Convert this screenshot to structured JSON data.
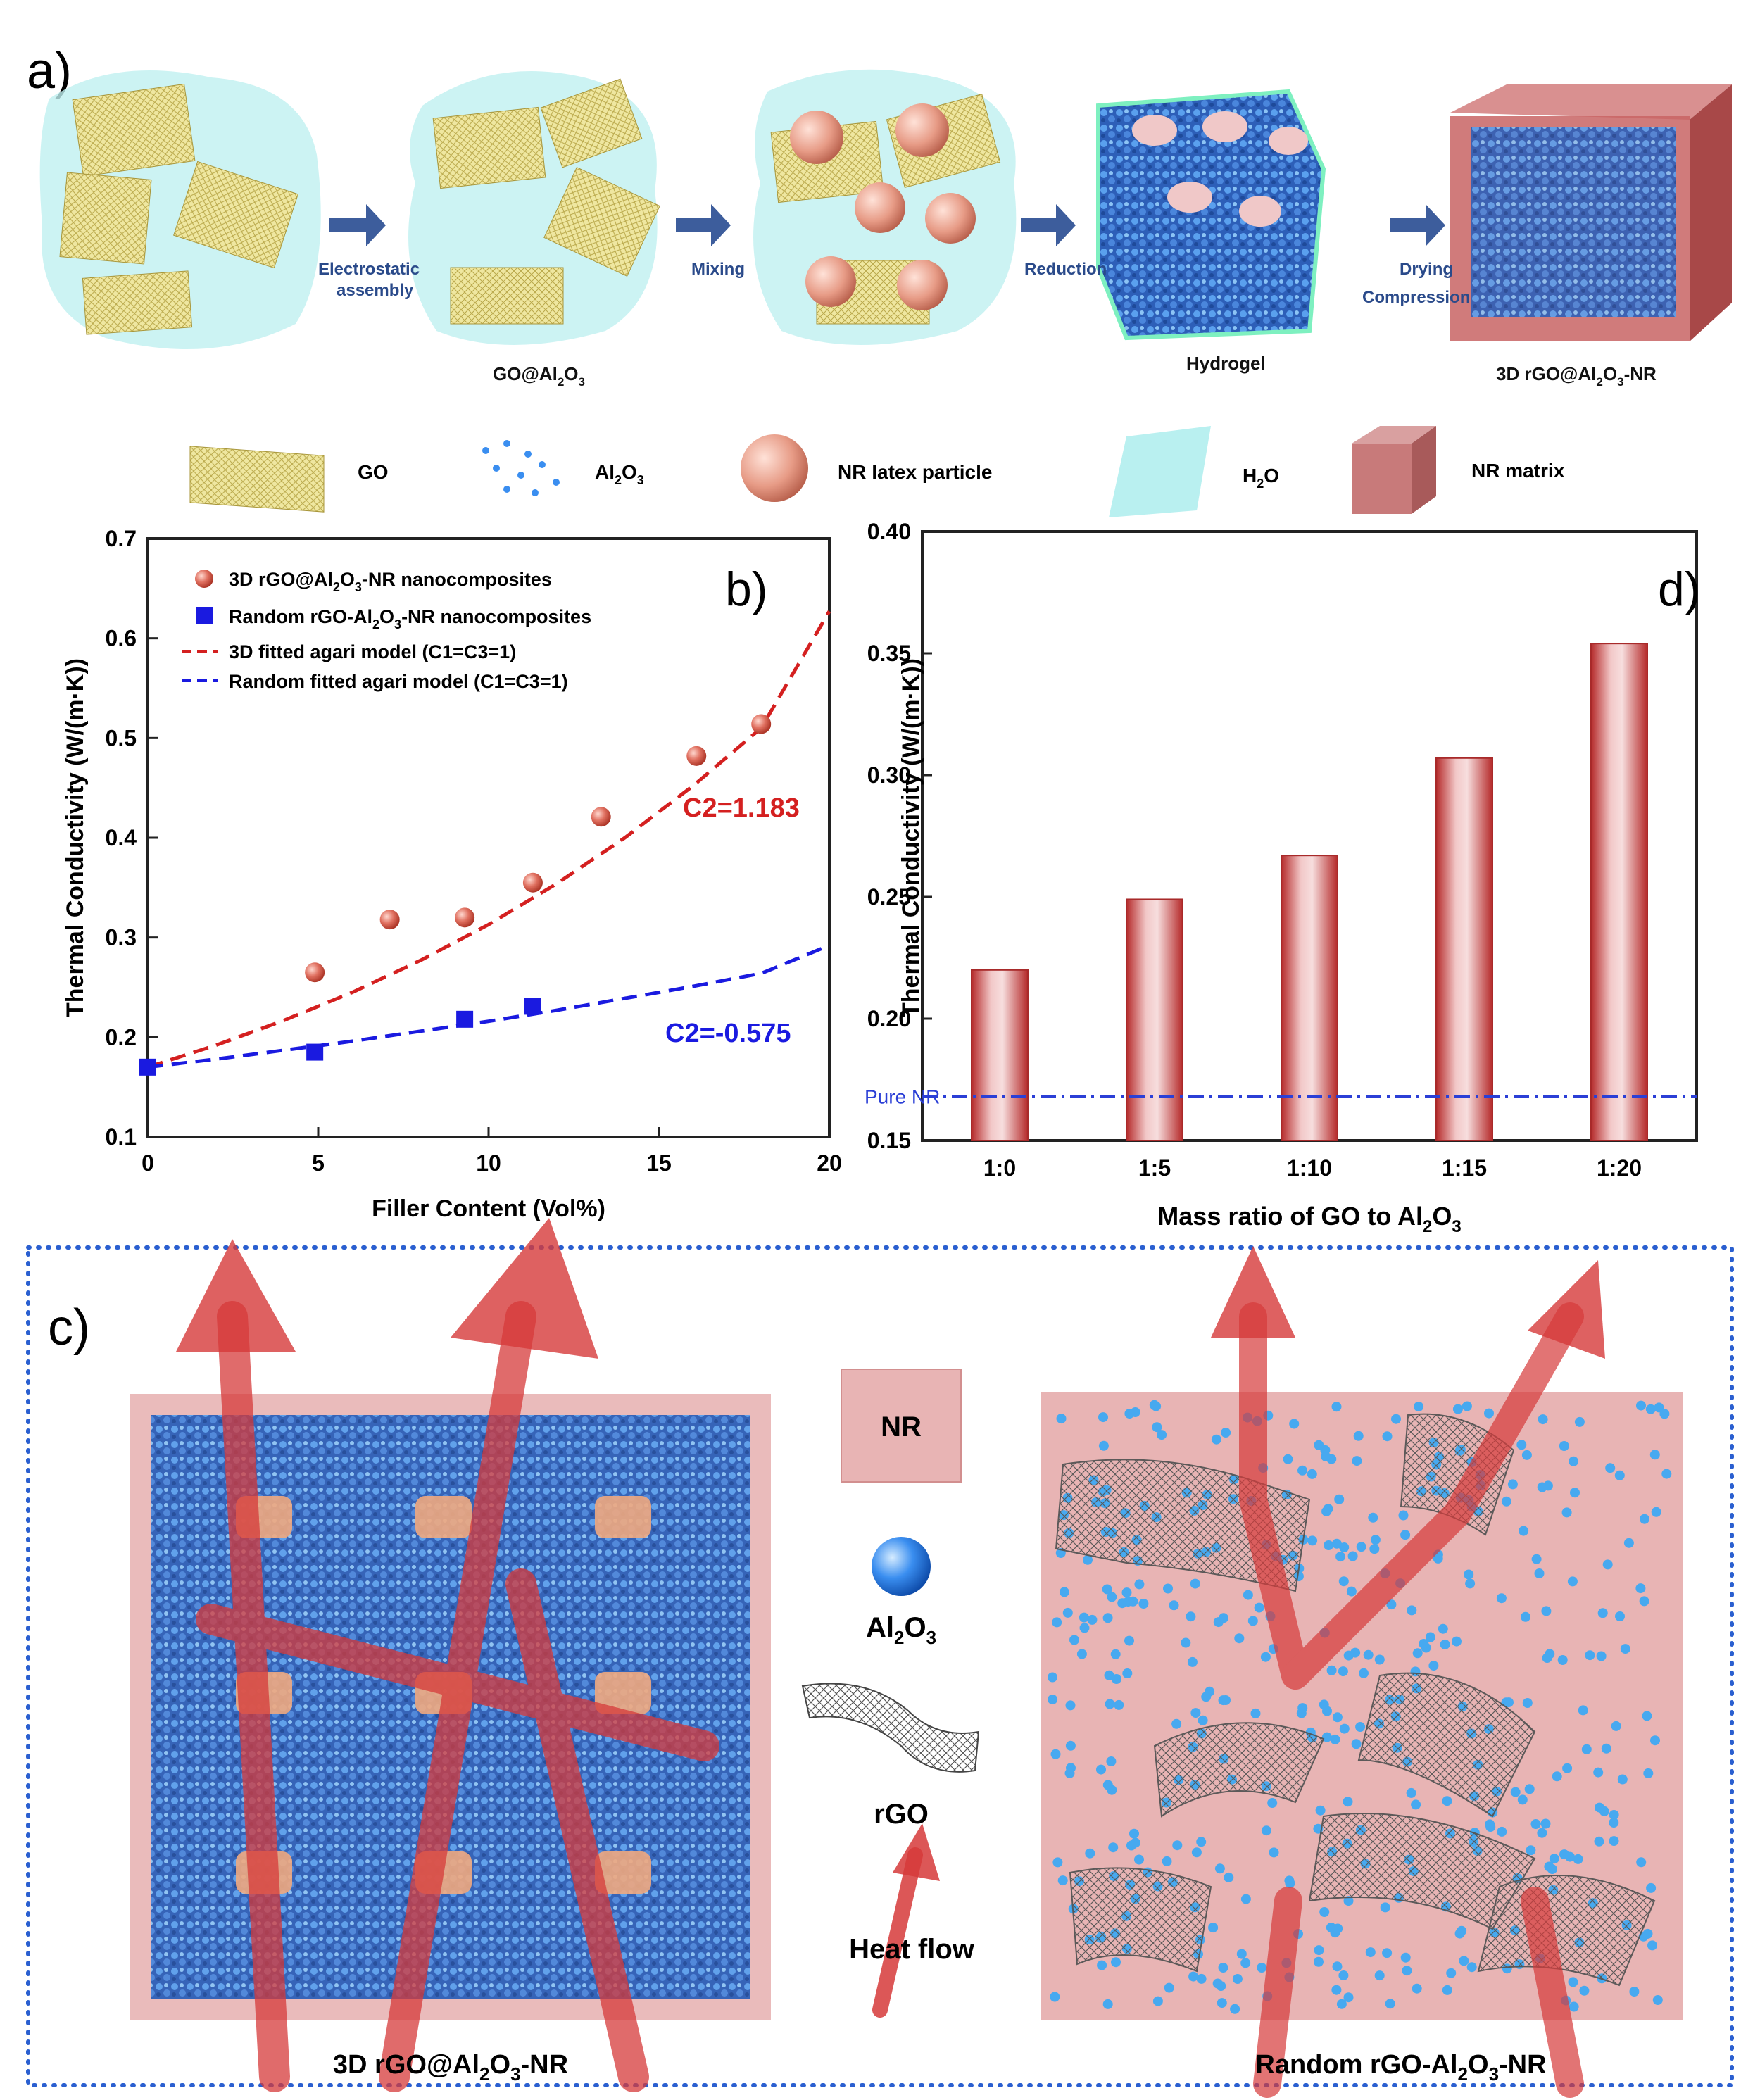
{
  "panel_a": {
    "label": "a)",
    "steps": [
      {
        "arrow_label_1": "Electrostatic",
        "arrow_label_2": "assembly"
      },
      {
        "arrow_label_1": "Mixing",
        "arrow_label_2": ""
      },
      {
        "arrow_label_1": "Reduction",
        "arrow_label_2": ""
      },
      {
        "arrow_label_1": "Drying",
        "arrow_label_2": "Compression"
      }
    ],
    "stage_names": [
      "",
      "GO@Al2O3",
      "",
      "Hydrogel",
      "3D rGO@Al2O3-NR"
    ],
    "legend": [
      "GO",
      "Al2O3",
      "NR latex particle",
      "H2O",
      "NR matrix"
    ]
  },
  "panel_c": {
    "label": "c)",
    "left_caption": "3D rGO@Al2O3-NR",
    "right_caption": "Random rGO-Al2O3-NR",
    "legend_nr": "NR",
    "legend_al": "Al2O3",
    "legend_rgo": "rGO",
    "legend_heat": "Heat flow"
  },
  "chart_data": [
    {
      "panel": "b)",
      "type": "scatter",
      "xlabel": "Filler  Content (Vol%)",
      "ylabel": "Thermal Conductivity (W/(m·K))",
      "xlim": [
        0,
        20
      ],
      "ylim": [
        0.1,
        0.7
      ],
      "xticks": [
        "0",
        "5",
        "10",
        "15",
        "20"
      ],
      "yticks": [
        "0.1",
        "0.2",
        "0.3",
        "0.4",
        "0.5",
        "0.6",
        "0.7"
      ],
      "series": [
        {
          "name": "3D rGO@Al2O3-NR nanocomposites",
          "color": "#d42020",
          "x": [
            4.9,
            7.1,
            9.3,
            11.3,
            13.3,
            16.1,
            18.0
          ],
          "y": [
            0.265,
            0.318,
            0.32,
            0.355,
            0.421,
            0.482,
            0.514
          ]
        },
        {
          "name": "Random rGO-Al2O3-NR nanocomposites",
          "color": "#1a1ae0",
          "x": [
            0,
            4.9,
            9.3,
            11.3
          ],
          "y": [
            0.17,
            0.185,
            0.218,
            0.231
          ]
        }
      ],
      "fits": [
        {
          "name": "3D fitted agari model (C1=C3=1)",
          "color": "#d42020",
          "x": [
            0,
            2,
            4,
            6,
            8,
            10,
            12,
            14,
            16,
            18,
            20
          ],
          "y": [
            0.17,
            0.192,
            0.217,
            0.245,
            0.277,
            0.313,
            0.354,
            0.4,
            0.452,
            0.51,
            0.627
          ]
        },
        {
          "name": "Random fitted agari model (C1=C3=1)",
          "color": "#1a1ae0",
          "x": [
            0,
            2,
            4,
            6,
            8,
            10,
            12,
            14,
            16,
            18,
            20
          ],
          "y": [
            0.17,
            0.178,
            0.187,
            0.196,
            0.206,
            0.216,
            0.227,
            0.239,
            0.251,
            0.264,
            0.292
          ]
        }
      ],
      "annotations": [
        "C2=1.183",
        "C2=-0.575"
      ]
    },
    {
      "panel": "d)",
      "type": "bar",
      "xlabel": "Mass ratio of GO to Al2O3",
      "ylabel": "Thermal Conductivity (W/(m·K))",
      "categories": [
        "1:0",
        "1:5",
        "1:10",
        "1:15",
        "1:20"
      ],
      "values": [
        0.22,
        0.249,
        0.267,
        0.307,
        0.354
      ],
      "ylim": [
        0.15,
        0.4
      ],
      "yticks": [
        "0.15",
        "0.20",
        "0.25",
        "0.30",
        "0.35",
        "0.40"
      ],
      "reference_line": {
        "label": "Pure NR",
        "value": 0.168
      },
      "bar_color": "#c83a3a"
    }
  ]
}
